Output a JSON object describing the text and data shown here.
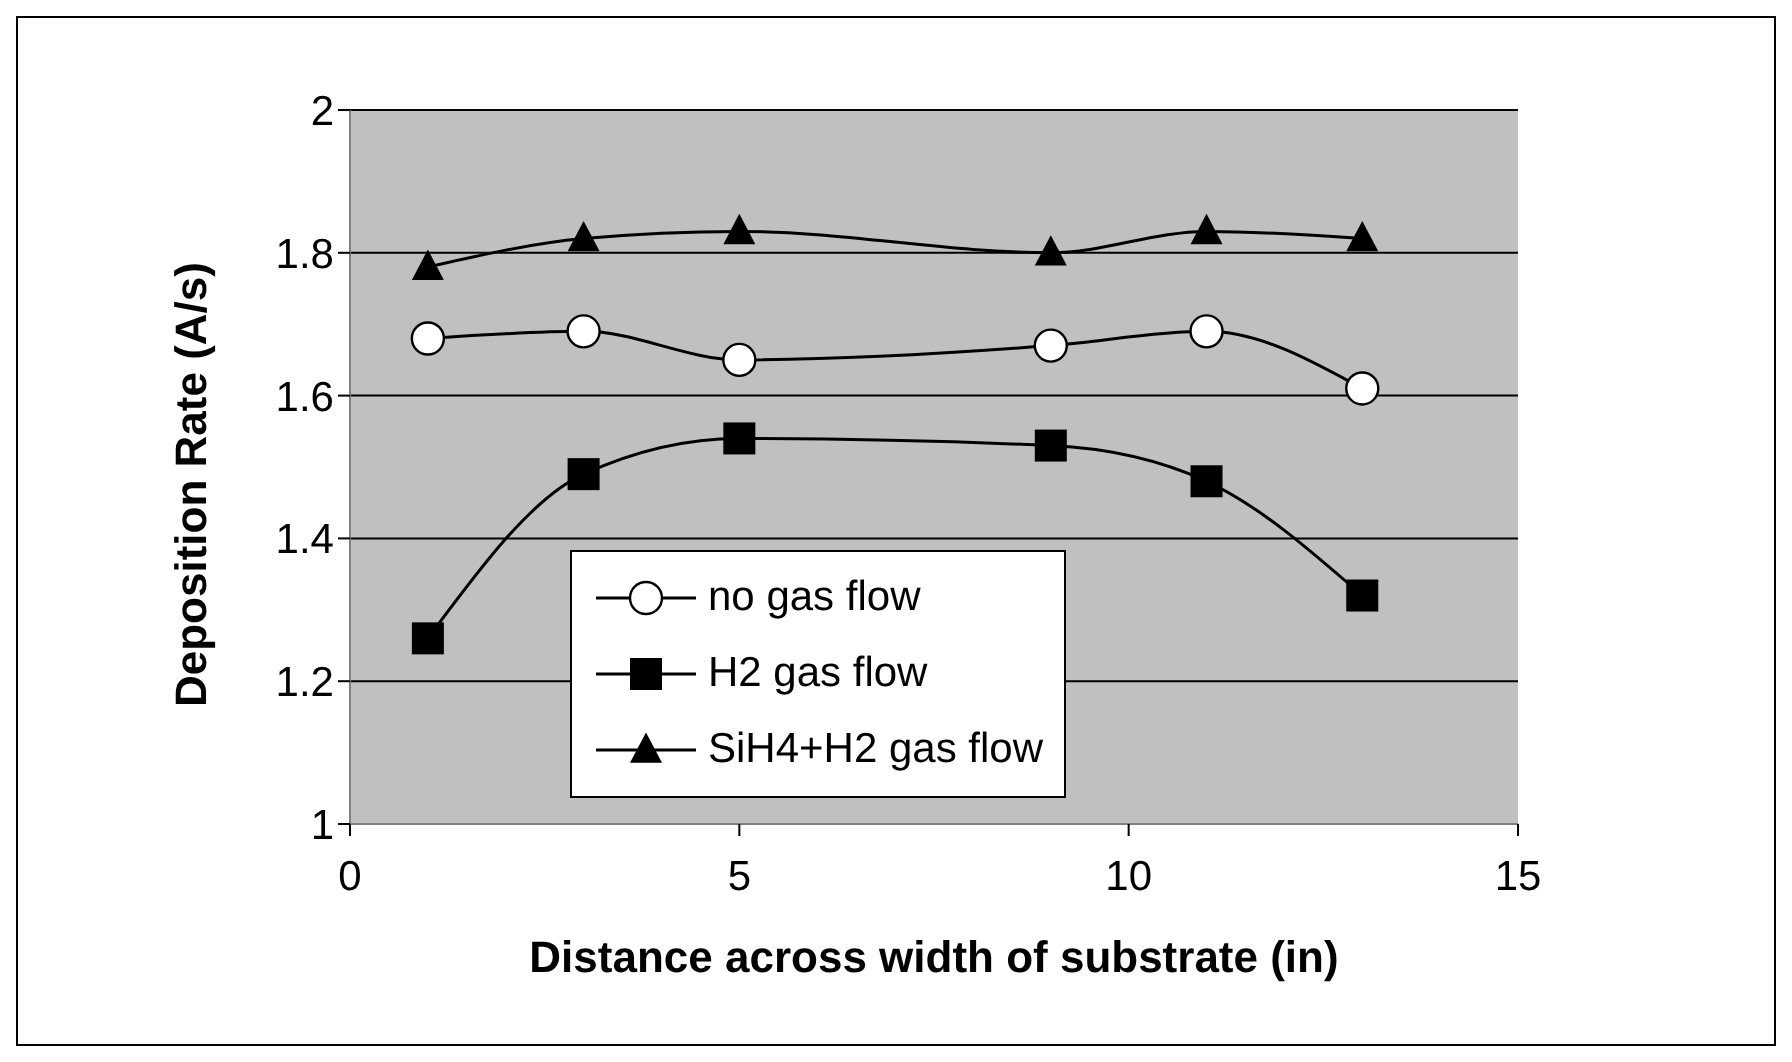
{
  "chart_data": {
    "type": "line",
    "xlabel": "Distance across width of substrate (in)",
    "ylabel": "Deposition Rate (A/s)",
    "x": [
      1,
      3,
      5,
      9,
      11,
      13
    ],
    "series": [
      {
        "name": "no gas flow",
        "color": "#000000",
        "marker": "circle",
        "values": [
          1.68,
          1.69,
          1.65,
          1.67,
          1.69,
          1.61
        ]
      },
      {
        "name": "H2 gas flow",
        "color": "#000000",
        "marker": "square",
        "values": [
          1.26,
          1.49,
          1.54,
          1.53,
          1.48,
          1.32
        ]
      },
      {
        "name": "SiH4+H2 gas flow",
        "color": "#000000",
        "marker": "triangle",
        "values": [
          1.78,
          1.82,
          1.83,
          1.8,
          1.83,
          1.82
        ]
      }
    ],
    "xlim": [
      0,
      15
    ],
    "xticks": [
      0,
      5,
      10,
      15
    ],
    "ylim": [
      1,
      2
    ],
    "yticks": [
      1,
      1.2,
      1.4,
      1.6,
      1.8,
      2
    ],
    "grid": "y",
    "legend": "bottom",
    "line_style": "solid"
  }
}
